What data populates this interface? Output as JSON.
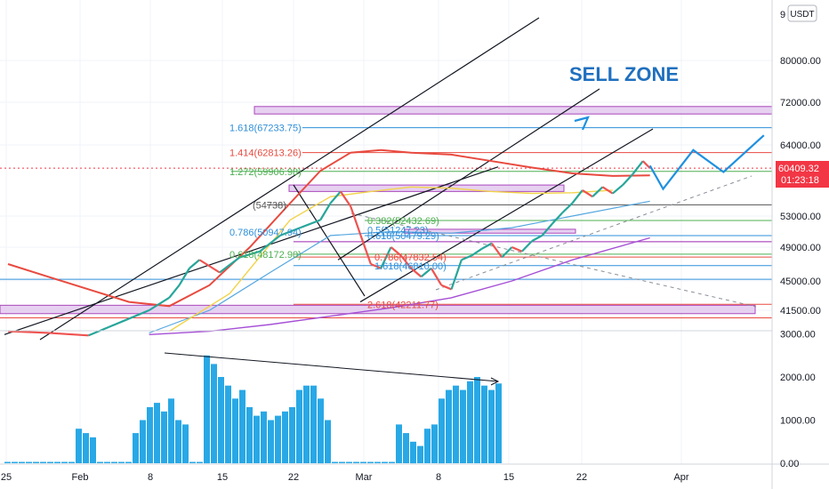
{
  "title_annotation": "SELL ZONE",
  "currency_badge": "USDT",
  "current_price": {
    "value": "60409.32",
    "countdown": "01:23:18",
    "color": "#f23645"
  },
  "colors": {
    "accent": "#1f6fbf",
    "ma_red": "#e84a3f",
    "volume": "#29a8e6",
    "zone_fill": "#e3c9ef",
    "zone_stroke": "#9c27b0",
    "ma_purple": "#a64fd6",
    "ma_yellow": "#f2d34a",
    "ma_blue": "#55a7e0"
  },
  "fib_labels": [
    {
      "text": "1.618(67233.75)",
      "price": 67233.75,
      "color": "#2e8fd9"
    },
    {
      "text": "1.414(62813.26)",
      "price": 62813.26,
      "color": "#e84a3f"
    },
    {
      "text": "1.272(59906.98)",
      "price": 59906.98,
      "color": "#4caf50"
    },
    {
      "text": "(54738)",
      "price": 54738,
      "color": "#555555"
    },
    {
      "text": "0.382(52432.69)",
      "price": 52432.69,
      "color": "#4caf50"
    },
    {
      "text": "0.5(51247.23)",
      "price": 51247.23,
      "color": "#2e8fd9"
    },
    {
      "text": "0.786(50947.94)",
      "price": 50947.94,
      "color": "#2e8fd9"
    },
    {
      "text": "0.618(50479.29)",
      "price": 50479.29,
      "color": "#2e8fd9"
    },
    {
      "text": "0.618(48172.90)",
      "price": 48172.9,
      "color": "#4caf50"
    },
    {
      "text": "0.786(47832.54)",
      "price": 47832.54,
      "color": "#e84a3f"
    },
    {
      "text": "1.618(46810.00)",
      "price": 46810.0,
      "color": "#2e8fd9"
    },
    {
      "text": "2.618(42211.77)",
      "price": 42211.77,
      "color": "#e84a3f"
    }
  ],
  "chart_data": {
    "type": "line",
    "price_axis": {
      "ticks": [
        80000,
        72000,
        64000,
        53000,
        49000,
        45000,
        41500
      ],
      "tick_labels": [
        "80000.00",
        "72000.00",
        "64000.00",
        "53000.00",
        "49000.00",
        "45000.00",
        "41500.00"
      ],
      "top_partial_label": "9"
    },
    "volume_axis": {
      "ticks": [
        3000,
        2000,
        1000,
        0
      ],
      "tick_labels": [
        "3000.00",
        "2000.00",
        "1000.00",
        "0.00"
      ]
    },
    "time_axis": {
      "ticks": [
        "25",
        "Feb",
        "8",
        "15",
        "22",
        "Mar",
        "8",
        "15",
        "22",
        "Apr"
      ]
    },
    "price_series": [
      {
        "day": 0,
        "value": 39000
      },
      {
        "day": 4,
        "value": 38800
      },
      {
        "day": 8,
        "value": 38500
      },
      {
        "day": 10,
        "value": 39500
      },
      {
        "day": 12,
        "value": 40500
      },
      {
        "day": 14,
        "value": 41500
      },
      {
        "day": 16,
        "value": 43000
      },
      {
        "day": 17,
        "value": 44500
      },
      {
        "day": 18,
        "value": 46500
      },
      {
        "day": 19,
        "value": 47500
      },
      {
        "day": 21,
        "value": 46000
      },
      {
        "day": 23,
        "value": 47800
      },
      {
        "day": 25,
        "value": 48500
      },
      {
        "day": 27,
        "value": 50500
      },
      {
        "day": 29,
        "value": 51500
      },
      {
        "day": 31,
        "value": 52500
      },
      {
        "day": 32,
        "value": 55000
      },
      {
        "day": 33,
        "value": 56800
      },
      {
        "day": 34,
        "value": 54500
      },
      {
        "day": 35,
        "value": 50500
      },
      {
        "day": 36,
        "value": 47000
      },
      {
        "day": 37,
        "value": 46500
      },
      {
        "day": 38,
        "value": 49000
      },
      {
        "day": 39,
        "value": 48000
      },
      {
        "day": 40,
        "value": 46500
      },
      {
        "day": 41,
        "value": 45500
      },
      {
        "day": 42,
        "value": 46500
      },
      {
        "day": 43,
        "value": 44500
      },
      {
        "day": 44,
        "value": 44000
      },
      {
        "day": 45,
        "value": 47500
      },
      {
        "day": 46,
        "value": 48000
      },
      {
        "day": 47,
        "value": 48800
      },
      {
        "day": 48,
        "value": 49500
      },
      {
        "day": 49,
        "value": 47800
      },
      {
        "day": 50,
        "value": 49000
      },
      {
        "day": 51,
        "value": 48500
      },
      {
        "day": 52,
        "value": 49800
      },
      {
        "day": 53,
        "value": 50500
      },
      {
        "day": 54,
        "value": 52000
      },
      {
        "day": 55,
        "value": 53500
      },
      {
        "day": 56,
        "value": 55000
      },
      {
        "day": 57,
        "value": 57000
      },
      {
        "day": 58,
        "value": 56000
      },
      {
        "day": 59,
        "value": 57500
      },
      {
        "day": 60,
        "value": 56500
      },
      {
        "day": 61,
        "value": 57800
      },
      {
        "day": 62,
        "value": 59500
      },
      {
        "day": 63,
        "value": 61500
      },
      {
        "day": 63.7,
        "value": 60409
      }
    ],
    "projection_path": [
      {
        "day": 63.7,
        "value": 60800
      },
      {
        "day": 65,
        "value": 57200
      },
      {
        "day": 68,
        "value": 63200
      },
      {
        "day": 71,
        "value": 59800
      },
      {
        "day": 75,
        "value": 65800
      }
    ],
    "ma_red": [
      {
        "day": 0,
        "value": 47000
      },
      {
        "day": 4,
        "value": 45500
      },
      {
        "day": 8,
        "value": 44000
      },
      {
        "day": 12,
        "value": 42500
      },
      {
        "day": 16,
        "value": 42000
      },
      {
        "day": 20,
        "value": 44500
      },
      {
        "day": 24,
        "value": 49000
      },
      {
        "day": 28,
        "value": 55000
      },
      {
        "day": 31,
        "value": 60000
      },
      {
        "day": 34,
        "value": 62800
      },
      {
        "day": 37,
        "value": 63200
      },
      {
        "day": 40,
        "value": 62800
      },
      {
        "day": 44,
        "value": 62500
      },
      {
        "day": 48,
        "value": 61500
      },
      {
        "day": 52,
        "value": 60500
      },
      {
        "day": 56,
        "value": 59600
      },
      {
        "day": 60,
        "value": 59200
      },
      {
        "day": 63.7,
        "value": 59300
      }
    ],
    "ma_purple": [
      {
        "day": 14,
        "value": 38600
      },
      {
        "day": 20,
        "value": 39000
      },
      {
        "day": 26,
        "value": 39800
      },
      {
        "day": 32,
        "value": 40800
      },
      {
        "day": 38,
        "value": 41800
      },
      {
        "day": 44,
        "value": 43000
      },
      {
        "day": 50,
        "value": 45000
      },
      {
        "day": 56,
        "value": 47500
      },
      {
        "day": 63.7,
        "value": 50200
      }
    ],
    "ma_blue": [
      {
        "day": 14,
        "value": 38800
      },
      {
        "day": 20,
        "value": 41500
      },
      {
        "day": 26,
        "value": 46000
      },
      {
        "day": 32,
        "value": 50500
      },
      {
        "day": 38,
        "value": 51000
      },
      {
        "day": 44,
        "value": 50800
      },
      {
        "day": 50,
        "value": 51500
      },
      {
        "day": 56,
        "value": 53000
      },
      {
        "day": 63.7,
        "value": 55300
      }
    ],
    "ma_yellow": [
      {
        "day": 16,
        "value": 39000
      },
      {
        "day": 22,
        "value": 43500
      },
      {
        "day": 28,
        "value": 52500
      },
      {
        "day": 32,
        "value": 56000
      },
      {
        "day": 36,
        "value": 56800
      },
      {
        "day": 40,
        "value": 57500
      },
      {
        "day": 44,
        "value": 57300
      },
      {
        "day": 48,
        "value": 56800
      },
      {
        "day": 52,
        "value": 56500
      },
      {
        "day": 56,
        "value": 56600
      },
      {
        "day": 60,
        "value": 57000
      }
    ],
    "volume_series": [
      30,
      30,
      30,
      30,
      30,
      30,
      30,
      30,
      30,
      30,
      800,
      700,
      600,
      30,
      30,
      30,
      30,
      30,
      700,
      1000,
      1300,
      1400,
      1200,
      1500,
      1000,
      900,
      30,
      30,
      2500,
      2300,
      2000,
      1800,
      1500,
      1700,
      1300,
      1100,
      1200,
      1000,
      1100,
      1200,
      1300,
      1700,
      1800,
      1800,
      1500,
      1000,
      30,
      30,
      30,
      30,
      30,
      30,
      30,
      30,
      30,
      900,
      700,
      500,
      400,
      800,
      900,
      1500,
      1700,
      1800,
      1700,
      1900,
      2000,
      1800,
      1700,
      1850
    ]
  }
}
